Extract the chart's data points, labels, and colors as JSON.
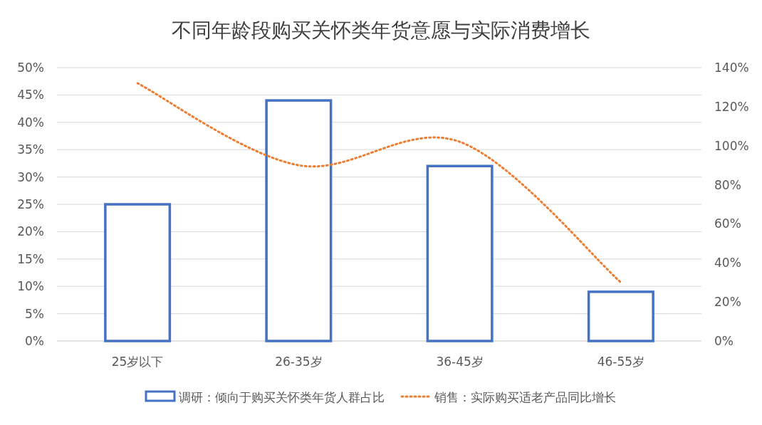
{
  "chart_data": {
    "type": "bar",
    "title": "不同年龄段购买关怀类年货意愿与实际消费增长",
    "categories": [
      "25岁以下",
      "26-35岁",
      "36-45岁",
      "46-55岁"
    ],
    "series": [
      {
        "name": "调研：倾向于购买关怀类年货人群占比",
        "color": "#4472c4",
        "values": [
          25,
          44,
          32,
          9
        ]
      },
      {
        "name": "销售：实际购买适老产品同比增长",
        "type": "line",
        "axis": "y2",
        "color": "#ed7d31",
        "line_style": "dotted",
        "marker": "none",
        "values": [
          132,
          90,
          102,
          30
        ]
      }
    ],
    "ylim": [
      0,
      50
    ],
    "yticks": [
      {
        "value": 0,
        "label": "0%"
      },
      {
        "value": 5,
        "label": "5%"
      },
      {
        "value": 10,
        "label": "10%"
      },
      {
        "value": 15,
        "label": "15%"
      },
      {
        "value": 20,
        "label": "20%"
      },
      {
        "value": 25,
        "label": "25%"
      },
      {
        "value": 30,
        "label": "30%"
      },
      {
        "value": 35,
        "label": "35%"
      },
      {
        "value": 40,
        "label": "40%"
      },
      {
        "value": 45,
        "label": "45%"
      },
      {
        "value": 50,
        "label": "50%"
      }
    ],
    "y2lim": [
      0,
      140
    ],
    "y2ticks": [
      {
        "value": 0,
        "label": "0%"
      },
      {
        "value": 20,
        "label": "20%"
      },
      {
        "value": 40,
        "label": "40%"
      },
      {
        "value": 60,
        "label": "60%"
      },
      {
        "value": 80,
        "label": "80%"
      },
      {
        "value": 100,
        "label": "100%"
      },
      {
        "value": 120,
        "label": "120%"
      },
      {
        "value": 140,
        "label": "140%"
      }
    ],
    "grid": "y",
    "legend": "bottom"
  }
}
